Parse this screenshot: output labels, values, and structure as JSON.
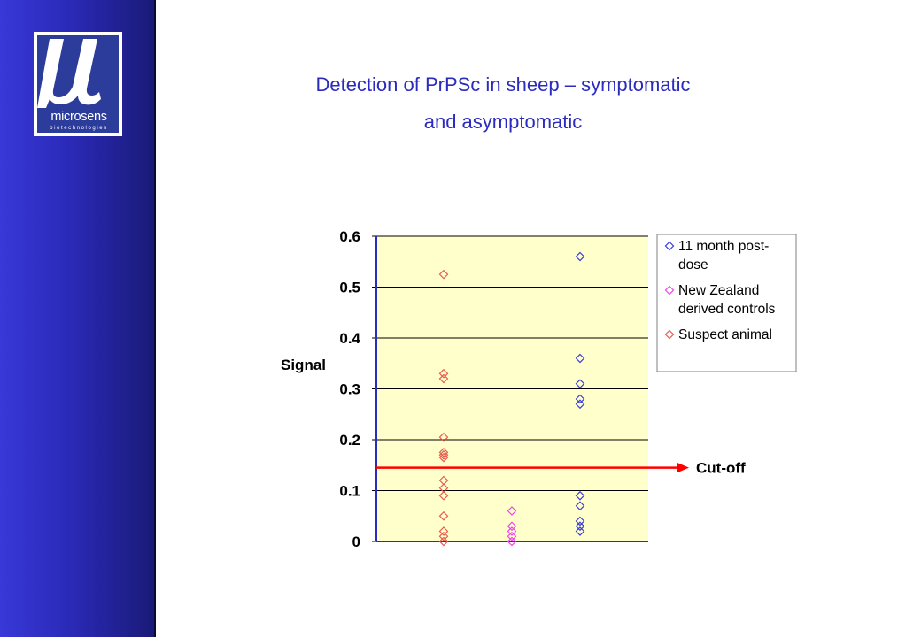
{
  "slide": {
    "title_line1": "Detection of PrPSc in sheep – symptomatic",
    "title_line2": "and asymptomatic",
    "logo_text": "microsens",
    "logo_subtext": "biotechnologies"
  },
  "colors": {
    "side_band": "#2a2ab8",
    "title": "#2b2bbf",
    "plot_background": "#ffffcc",
    "cutoff_line": "#ff0000"
  },
  "chart_data": {
    "type": "scatter",
    "ylabel": "Signal",
    "ylim": [
      0,
      0.6
    ],
    "yticks": [
      0,
      0.1,
      0.2,
      0.3,
      0.4,
      0.5,
      0.6
    ],
    "ytick_labels": [
      "0",
      "0.1",
      "0.2",
      "0.3",
      "0.4",
      "0.5",
      "0.6"
    ],
    "grid": true,
    "legend_position": "right",
    "cutoff": {
      "value": 0.145,
      "label": "Cut-off"
    },
    "series": [
      {
        "name": "Suspect animal",
        "color": "#e85a4f",
        "x": 1,
        "values": [
          0.525,
          0.33,
          0.32,
          0.205,
          0.175,
          0.17,
          0.165,
          0.12,
          0.105,
          0.09,
          0.05,
          0.02,
          0.01,
          0.0
        ]
      },
      {
        "name": "New Zealand derived controls",
        "color": "#ee44ee",
        "x": 2,
        "values": [
          0.06,
          0.03,
          0.02,
          0.01,
          0.0
        ]
      },
      {
        "name": "11 month post-dose",
        "color": "#3a3ad8",
        "x": 3,
        "values": [
          0.56,
          0.36,
          0.31,
          0.28,
          0.27,
          0.09,
          0.07,
          0.04,
          0.03,
          0.02
        ]
      }
    ],
    "legend": [
      {
        "lines": [
          "11 month post-",
          "dose"
        ],
        "color": "#3a3ad8"
      },
      {
        "lines": [
          "New Zealand",
          "derived controls"
        ],
        "color": "#ee44ee"
      },
      {
        "lines": [
          "Suspect animal"
        ],
        "color": "#e85a4f"
      }
    ]
  }
}
